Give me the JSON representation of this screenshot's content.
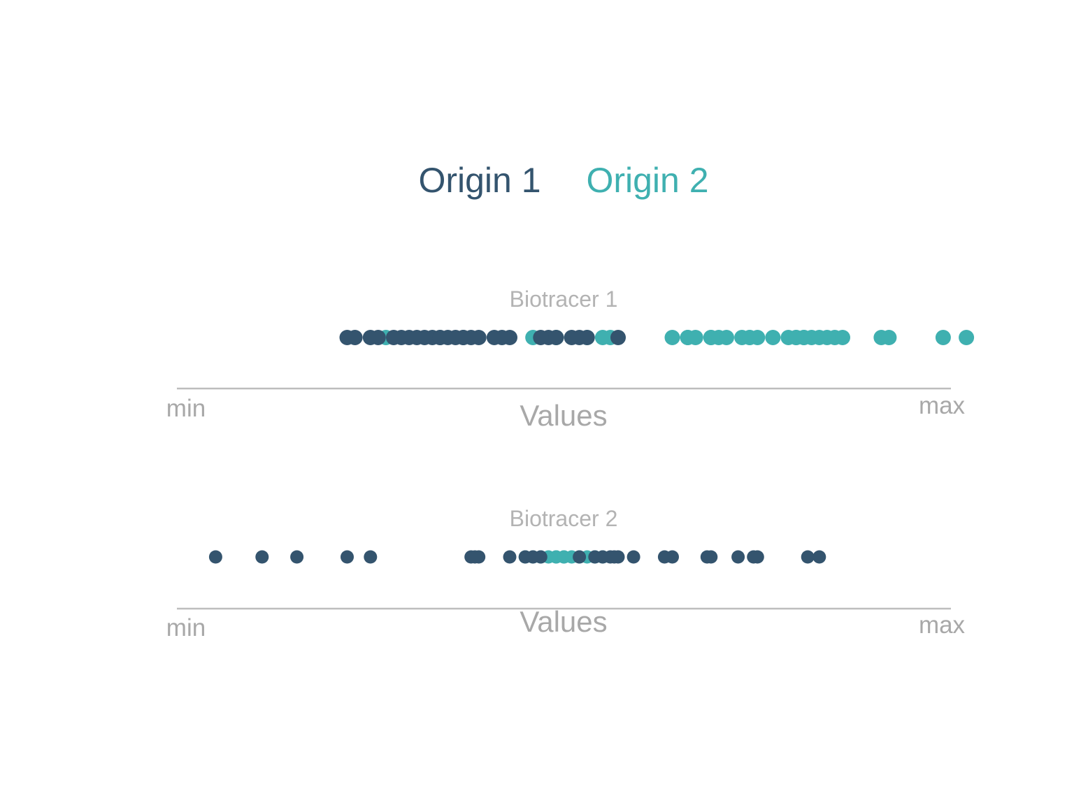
{
  "chart_data": {
    "type": "scatter",
    "legend": {
      "position": "top-center",
      "items": [
        {
          "label": "Origin 1",
          "color": "#34546e"
        },
        {
          "label": "Origin 2",
          "color": "#3fb0b0"
        }
      ]
    },
    "xlim": [
      0,
      1
    ],
    "grid": false,
    "panels": [
      {
        "title": "Biotracer 1",
        "xlabel": "Values",
        "x_min_label": "min",
        "x_max_label": "max",
        "series": [
          {
            "name": "Origin 2",
            "color": "#3fb0b0",
            "values": [
              0.27,
              0.46,
              0.49,
              0.53,
              0.55,
              0.56,
              0.64,
              0.66,
              0.66,
              0.67,
              0.69,
              0.69,
              0.7,
              0.71,
              0.73,
              0.74,
              0.74,
              0.75,
              0.77,
              0.79,
              0.8,
              0.8,
              0.81,
              0.81,
              0.82,
              0.83,
              0.84,
              0.85,
              0.86,
              0.91,
              0.92,
              0.99,
              1.02
            ]
          },
          {
            "name": "Origin 1",
            "color": "#34546e",
            "values": [
              0.22,
              0.23,
              0.25,
              0.26,
              0.28,
              0.29,
              0.3,
              0.31,
              0.32,
              0.33,
              0.34,
              0.34,
              0.35,
              0.36,
              0.37,
              0.37,
              0.38,
              0.39,
              0.41,
              0.42,
              0.43,
              0.48,
              0.47,
              0.49,
              0.51,
              0.52,
              0.53,
              0.57
            ]
          }
        ]
      },
      {
        "title": "Biotracer 2",
        "xlabel": "Values",
        "x_min_label": "min",
        "x_max_label": "max",
        "series": [
          {
            "name": "Origin 2",
            "color": "#3fb0b0",
            "values": [
              0.45,
              0.46,
              0.47,
              0.48,
              0.49,
              0.49,
              0.5,
              0.5,
              0.51,
              0.52,
              0.53,
              0.54,
              0.55
            ]
          },
          {
            "name": "Origin 1",
            "color": "#34546e",
            "values": [
              0.05,
              0.11,
              0.155,
              0.22,
              0.25,
              0.38,
              0.385,
              0.39,
              0.43,
              0.45,
              0.46,
              0.47,
              0.52,
              0.54,
              0.55,
              0.56,
              0.565,
              0.57,
              0.59,
              0.63,
              0.64,
              0.685,
              0.69,
              0.725,
              0.745,
              0.75,
              0.815,
              0.83
            ]
          }
        ]
      }
    ]
  }
}
